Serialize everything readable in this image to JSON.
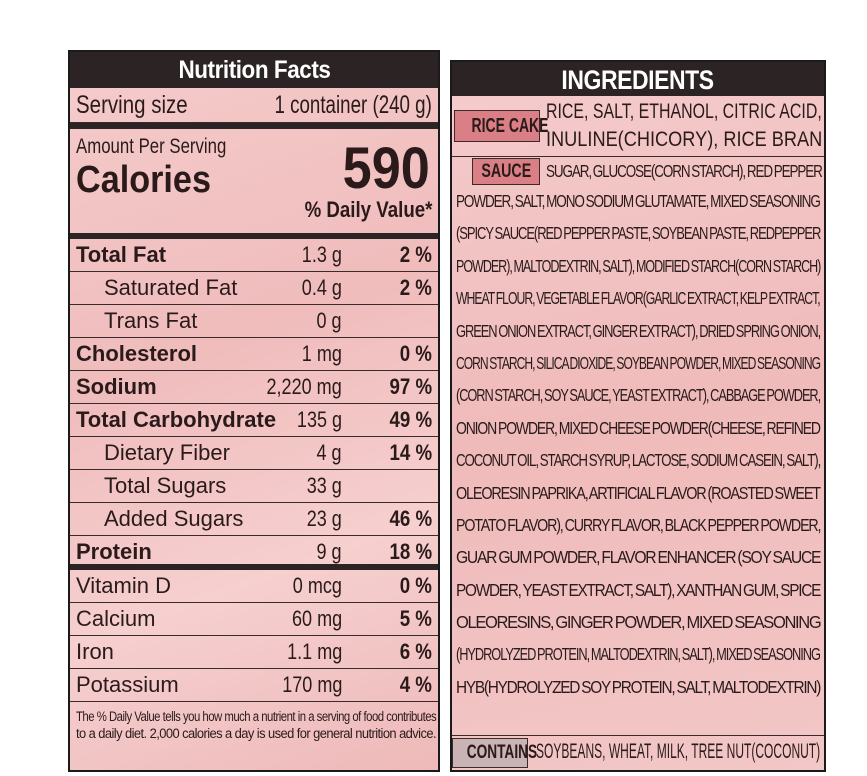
{
  "nutrition": {
    "title": "Nutrition Facts",
    "serving_label": "Serving size",
    "serving_value": "1 container (240 g)",
    "amount_per_serving": "Amount Per Serving",
    "calories_label": "Calories",
    "calories_value": "590",
    "dv_header": "% Daily Value*",
    "rows": [
      {
        "label": "Total Fat",
        "amount": "1.3 g",
        "dv": "2 %"
      },
      {
        "label": "Saturated Fat",
        "amount": "0.4 g",
        "dv": "2 %"
      },
      {
        "label": "Trans Fat",
        "amount": "0 g",
        "dv": ""
      },
      {
        "label": "Cholesterol",
        "amount": "1 mg",
        "dv": "0 %"
      },
      {
        "label": "Sodium",
        "amount": "2,220 mg",
        "dv": "97 %"
      },
      {
        "label": "Total Carbohydrate",
        "amount": "135 g",
        "dv": "49 %"
      },
      {
        "label": "Dietary Fiber",
        "amount": "4 g",
        "dv": "14 %"
      },
      {
        "label": "Total Sugars",
        "amount": "33 g",
        "dv": ""
      },
      {
        "label": "Added Sugars",
        "amount": "23 g",
        "dv": "46 %"
      },
      {
        "label": "Protein",
        "amount": "9 g",
        "dv": "18 %"
      },
      {
        "label": "Vitamin D",
        "amount": "0 mcg",
        "dv": "0 %"
      },
      {
        "label": "Calcium",
        "amount": "60 mg",
        "dv": "5 %"
      },
      {
        "label": "Iron",
        "amount": "1.1 mg",
        "dv": "6 %"
      },
      {
        "label": "Potassium",
        "amount": "170 mg",
        "dv": "4 %"
      }
    ],
    "footnote_1": "The % Daily Value tells you how much a nutrient in a serving of food contributes",
    "footnote_2": "to a daily diet. 2,000 calories a day is used for general nutrition advice."
  },
  "ingredients": {
    "title": "INGREDIENTS",
    "rice_cake_label": "RICE CAKE",
    "rice_cake_line1": "RICE, SALT, ETHANOL, CITRIC ACID,",
    "rice_cake_line2": "INULINE(CHICORY), RICE BRAN",
    "sauce_label": "SAUCE",
    "sauce_first_line": "SUGAR, GLUCOSE(CORN STARCH), RED PEPPER",
    "sauce_lines": [
      "POWDER, SALT, MONO SODIUM GLUTAMATE, MIXED SEASONING",
      "(SPICY SAUCE(RED PEPPER PASTE, SOYBEAN PASTE, REDPEPPER",
      "POWDER), MALTODEXTRIN, SALT), MODIFIED STARCH(CORN STARCH)",
      "WHEAT FLOUR, VEGETABLE FLAVOR(GARLIC EXTRACT, KELP EXTRACT,",
      "GREEN ONION EXTRACT, GINGER EXTRACT), DRIED SPRING ONION,",
      "CORN STARCH, SILICA DIOXIDE, SOYBEAN POWDER, MIXED SEASONING",
      "(CORN STARCH, SOY SAUCE, YEAST EXTRACT), CABBAGE POWDER,",
      "ONION POWDER, MIXED CHEESE POWDER(CHEESE, REFINED",
      "COCONUT OIL, STARCH SYRUP, LACTOSE, SODIUM CASEIN, SALT),",
      "OLEORESIN PAPRIKA, ARTIFICIAL FLAVOR (ROASTED SWEET",
      "POTATO FLAVOR), CURRY FLAVOR, BLACK PEPPER POWDER,",
      "GUAR GUM POWDER, FLAVOR ENHANCER (SOY SAUCE",
      "POWDER, YEAST EXTRACT, SALT), XANTHAN GUM, SPICE",
      "OLEORESINS, GINGER POWDER, MIXED SEASONING",
      "(HYDROLYZED PROTEIN, MALTODEXTRIN, SALT), MIXED SEASONING",
      "HYB(HYDROLYZED SOY PROTEIN, SALT, MALTODEXTRIN)"
    ],
    "contains_label": "CONTAINS",
    "contains_value": "SOYBEANS, WHEAT, MILK, TREE NUT(COCONUT)"
  }
}
